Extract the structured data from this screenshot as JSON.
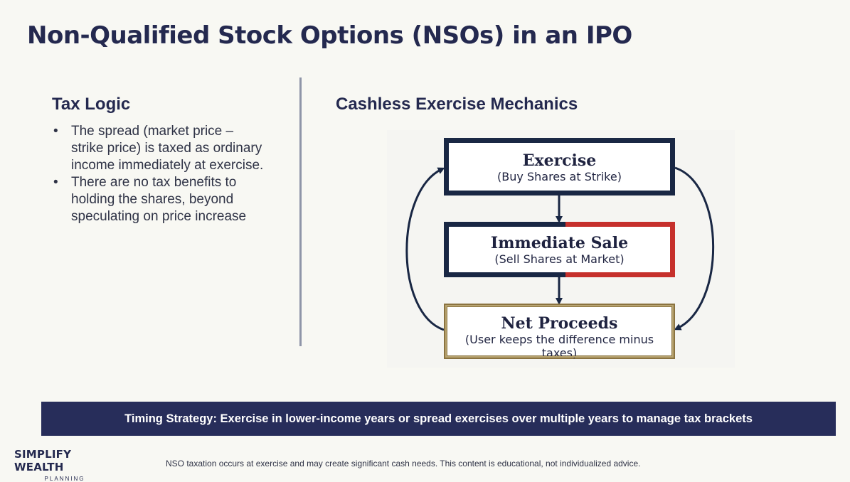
{
  "title": "Non-Qualified Stock Options (NSOs) in an IPO",
  "tax_logic": {
    "heading": "Tax Logic",
    "bullets": [
      "The spread (market price – strike price) is taxed as ordinary income immediately at exercise.",
      "There are no tax benefits to holding the shares, beyond speculating on price increase"
    ]
  },
  "mechanics": {
    "heading": "Cashless Exercise Mechanics",
    "boxes": [
      {
        "title": "Exercise",
        "subtitle": "(Buy Shares at Strike)"
      },
      {
        "title": "Immediate Sale",
        "subtitle": "(Sell Shares at Market)"
      },
      {
        "title": "Net Proceeds",
        "subtitle": "(User keeps the difference minus taxes)"
      }
    ],
    "colors": {
      "navy": "#192744",
      "red": "#c6302c",
      "gold": "#8a7340"
    }
  },
  "banner": {
    "text": "Timing Strategy: Exercise in lower-income years or spread exercises over multiple years to manage tax brackets"
  },
  "logo": {
    "line1": "SIMPLIFY WEALTH",
    "line2": "PLANNING"
  },
  "disclaimer": "NSO taxation occurs at exercise and may create significant cash needs. This content is educational, not individualized advice."
}
